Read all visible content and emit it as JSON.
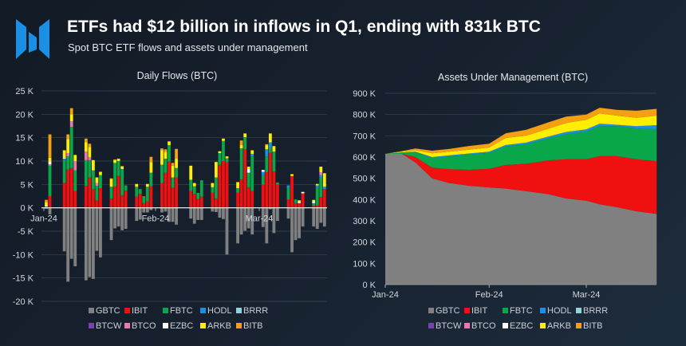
{
  "header": {
    "title": "ETFs had $12 billion in inflows in Q1, ending with 831k BTC",
    "subtitle": "Spot BTC ETF flows and assets under management",
    "logo_color": "#1a8fe3"
  },
  "colors": {
    "GBTC": "#808080",
    "IBIT": "#f0100f",
    "FBTC": "#0aa64a",
    "HODL": "#1a8fe3",
    "BRRR": "#8dd3e0",
    "BTCW": "#7a3fb0",
    "BTCO": "#e879b0",
    "EZBC": "#ffffff",
    "ARKB": "#ffee00",
    "BITB": "#f5a013"
  },
  "legend": [
    "GBTC",
    "IBIT",
    "FBTC",
    "HODL",
    "BRRR",
    "BTCW",
    "BTCO",
    "EZBC",
    "ARKB",
    "BITB"
  ],
  "chart_data": [
    {
      "type": "bar",
      "stacked": true,
      "title": "Daily Flows (BTC)",
      "ylim": [
        -20000,
        25000
      ],
      "yticks": [
        "25 K",
        "20 K",
        "15 K",
        "10 K",
        "5 K",
        "0 K",
        "-5 K",
        "-10 K",
        "-15 K",
        "-20 K"
      ],
      "ytick_values": [
        25000,
        20000,
        15000,
        10000,
        5000,
        0,
        -5000,
        -10000,
        -15000,
        -20000
      ],
      "xticks": [
        "Jan-24",
        "Feb-24",
        "Mar-24"
      ],
      "grid": true,
      "legend_position": "bottom",
      "x": [
        "2024-01-11",
        "2024-01-12",
        "2024-01-16",
        "2024-01-17",
        "2024-01-18",
        "2024-01-19",
        "2024-01-22",
        "2024-01-23",
        "2024-01-24",
        "2024-01-25",
        "2024-01-26",
        "2024-01-29",
        "2024-01-30",
        "2024-01-31",
        "2024-02-01",
        "2024-02-02",
        "2024-02-05",
        "2024-02-06",
        "2024-02-07",
        "2024-02-08",
        "2024-02-09",
        "2024-02-12",
        "2024-02-13",
        "2024-02-14",
        "2024-02-15",
        "2024-02-16",
        "2024-02-20",
        "2024-02-21",
        "2024-02-22",
        "2024-02-23",
        "2024-02-26",
        "2024-02-27",
        "2024-02-28",
        "2024-02-29",
        "2024-03-01",
        "2024-03-04",
        "2024-03-05",
        "2024-03-06",
        "2024-03-07",
        "2024-03-08",
        "2024-03-11",
        "2024-03-12",
        "2024-03-13",
        "2024-03-14",
        "2024-03-15",
        "2024-03-18",
        "2024-03-19",
        "2024-03-20",
        "2024-03-21",
        "2024-03-22",
        "2024-03-25",
        "2024-03-26",
        "2024-03-27",
        "2024-03-28"
      ],
      "series": [
        {
          "name": "GBTC",
          "values": [
            -200,
            -1400,
            -9300,
            -15800,
            -10900,
            -12500,
            -15500,
            -14800,
            -15200,
            -9200,
            -10600,
            -6900,
            -4400,
            -4000,
            -4800,
            -4500,
            -2800,
            -2500,
            -1000,
            -1000,
            -500,
            -1000,
            -800,
            -3000,
            -3000,
            -3600,
            -2300,
            -3400,
            -2600,
            -2600,
            -800,
            -900,
            -2100,
            -2400,
            -10000,
            -7600,
            -5700,
            -4900,
            -4400,
            -5700,
            -4100,
            -7600,
            -300,
            -5400,
            -2800,
            -2300,
            -9500,
            -6900,
            -6500,
            -4000,
            -4000,
            -4500,
            -3200,
            -4000
          ]
        },
        {
          "name": "IBIT",
          "values": [
            0,
            2500,
            5400,
            8200,
            8500,
            3600,
            4700,
            6500,
            4000,
            1600,
            4200,
            2000,
            4500,
            6800,
            2700,
            3700,
            2400,
            3000,
            1000,
            1400,
            4600,
            5300,
            7500,
            9900,
            4300,
            6500,
            3600,
            3000,
            1900,
            2400,
            3200,
            2000,
            9200,
            10000,
            9700,
            3200,
            6100,
            12500,
            4400,
            3600,
            5000,
            7600,
            11800,
            7800,
            5000,
            1800,
            6800,
            1000,
            1000,
            3100,
            400,
            500,
            2300,
            4000
          ]
        },
        {
          "name": "FBTC",
          "values": [
            300,
            6500,
            4800,
            2800,
            8800,
            4400,
            5500,
            3700,
            4000,
            3100,
            2800,
            2500,
            5100,
            3200,
            5600,
            1100,
            2100,
            1000,
            1300,
            3100,
            2900,
            3900,
            3000,
            3500,
            2200,
            2000,
            2400,
            1600,
            1300,
            3500,
            1200,
            4500,
            2500,
            4300,
            900,
            1000,
            6600,
            2600,
            3100,
            7400,
            2000,
            3400,
            1000,
            4200,
            400,
            2500,
            0,
            800,
            0,
            0,
            600,
            3900,
            4200,
            0
          ]
        },
        {
          "name": "HODL",
          "values": [
            0,
            0,
            300,
            0,
            0,
            0,
            0,
            0,
            0,
            0,
            0,
            0,
            0,
            0,
            0,
            0,
            0,
            0,
            0,
            0,
            0,
            0,
            0,
            0,
            0,
            0,
            0,
            0,
            0,
            0,
            0,
            0,
            0,
            0,
            0,
            0,
            0,
            0,
            0,
            500,
            700,
            1500,
            1200,
            0,
            0,
            500,
            0,
            0,
            0,
            0,
            0,
            400,
            500,
            500
          ]
        },
        {
          "name": "BRRR",
          "values": [
            0,
            0,
            0,
            0,
            0,
            0,
            0,
            0,
            0,
            0,
            0,
            0,
            0,
            0,
            0,
            0,
            0,
            0,
            0,
            0,
            0,
            0,
            0,
            0,
            0,
            0,
            0,
            0,
            0,
            0,
            0,
            0,
            0,
            0,
            0,
            0,
            0,
            0,
            0,
            0,
            0,
            0,
            0,
            0,
            0,
            0,
            0,
            0,
            0,
            0,
            0,
            0,
            0,
            0
          ]
        },
        {
          "name": "BTCW",
          "values": [
            0,
            0,
            0,
            0,
            0,
            0,
            0,
            0,
            0,
            0,
            0,
            0,
            0,
            0,
            0,
            0,
            0,
            0,
            0,
            0,
            0,
            0,
            0,
            0,
            0,
            0,
            0,
            0,
            0,
            0,
            0,
            0,
            0,
            0,
            0,
            0,
            0,
            0,
            0,
            0,
            0,
            0,
            0,
            0,
            0,
            0,
            0,
            0,
            0,
            0,
            0,
            0,
            0,
            0
          ]
        },
        {
          "name": "BTCO",
          "values": [
            0,
            300,
            0,
            700,
            1200,
            2000,
            1800,
            600,
            0,
            600,
            0,
            0,
            0,
            0,
            0,
            0,
            0,
            0,
            0,
            0,
            0,
            0,
            0,
            0,
            0,
            0,
            0,
            0,
            0,
            0,
            0,
            0,
            0,
            0,
            0,
            0,
            0,
            0,
            0,
            0,
            0,
            0,
            0,
            0,
            0,
            0,
            0,
            0,
            0,
            0,
            0,
            0,
            600,
            0
          ]
        },
        {
          "name": "EZBC",
          "values": [
            300,
            600,
            300,
            0,
            0,
            0,
            0,
            0,
            0,
            0,
            0,
            0,
            0,
            0,
            0,
            0,
            0,
            0,
            0,
            0,
            0,
            0,
            0,
            0,
            0,
            0,
            0,
            0,
            0,
            0,
            0,
            0,
            0,
            0,
            0,
            0,
            0,
            0,
            800,
            0,
            400,
            0,
            0,
            0,
            0,
            0,
            0,
            0,
            300,
            300,
            400,
            0,
            0,
            0
          ]
        },
        {
          "name": "ARKB",
          "values": [
            600,
            800,
            1500,
            3000,
            1500,
            1300,
            2000,
            2200,
            2200,
            1200,
            700,
            1700,
            700,
            500,
            600,
            0,
            600,
            0,
            100,
            600,
            2300,
            3100,
            1500,
            800,
            2500,
            2000,
            3000,
            700,
            0,
            0,
            900,
            3300,
            400,
            500,
            400,
            1300,
            700,
            800,
            500,
            800,
            0,
            900,
            1900,
            1200,
            0,
            0,
            400,
            0,
            300,
            0,
            300,
            300,
            1200,
            2900
          ]
        },
        {
          "name": "BITB",
          "values": [
            500,
            5000,
            0,
            1000,
            1300,
            0,
            800,
            700,
            0,
            0,
            0,
            100,
            0,
            0,
            0,
            0,
            0,
            0,
            0,
            0,
            1100,
            400,
            500,
            0,
            600,
            2100,
            0,
            0,
            0,
            0,
            0,
            0,
            0,
            0,
            0,
            0,
            1000,
            0,
            0,
            0,
            0,
            200,
            0,
            0,
            0,
            0,
            0,
            0,
            0,
            0,
            0,
            0,
            0,
            0
          ]
        }
      ]
    },
    {
      "type": "area",
      "stacked": true,
      "title": "Assets Under Management (BTC)",
      "ylim": [
        0,
        900000
      ],
      "yticks": [
        "900 K",
        "800 K",
        "700 K",
        "600 K",
        "500 K",
        "400 K",
        "300 K",
        "200 K",
        "100 K",
        "0 K"
      ],
      "ytick_values": [
        900000,
        800000,
        700000,
        600000,
        500000,
        400000,
        300000,
        200000,
        100000,
        0
      ],
      "xticks": [
        "Jan-24",
        "Feb-24",
        "Mar-24"
      ],
      "xtick_values": [
        "2024-01-01",
        "2024-02-01",
        "2024-03-01"
      ],
      "grid": true,
      "legend_position": "bottom",
      "x": [
        "2024-01-01",
        "2024-01-06",
        "2024-01-10",
        "2024-01-15",
        "2024-01-20",
        "2024-01-26",
        "2024-02-01",
        "2024-02-06",
        "2024-02-12",
        "2024-02-19",
        "2024-02-24",
        "2024-03-01",
        "2024-03-05",
        "2024-03-10",
        "2024-03-16",
        "2024-03-22"
      ],
      "series": [
        {
          "name": "GBTC",
          "values": [
            615000,
            615000,
            575000,
            500000,
            478000,
            465000,
            457000,
            452000,
            440000,
            425000,
            405000,
            395000,
            378000,
            365000,
            345000,
            333000
          ]
        },
        {
          "name": "IBIT",
          "values": [
            0,
            0,
            25000,
            50000,
            65000,
            75000,
            88000,
            111000,
            128000,
            160000,
            185000,
            195000,
            227000,
            240000,
            245000,
            247000
          ]
        },
        {
          "name": "FBTC",
          "values": [
            0,
            7000,
            25000,
            45000,
            60000,
            72000,
            75000,
            87000,
            92000,
            105000,
            118000,
            130000,
            140000,
            140000,
            145000,
            150000
          ]
        },
        {
          "name": "HODL",
          "values": [
            0,
            0,
            0,
            5000,
            5000,
            5000,
            5000,
            7000,
            8000,
            8000,
            10000,
            10000,
            12000,
            7000,
            10000,
            20000
          ]
        },
        {
          "name": "BRRR",
          "values": [
            0,
            0,
            0,
            0,
            0,
            0,
            0,
            0,
            0,
            0,
            0,
            0,
            0,
            0,
            0,
            0
          ]
        },
        {
          "name": "BTCW",
          "values": [
            0,
            0,
            0,
            0,
            0,
            0,
            0,
            0,
            0,
            0,
            0,
            0,
            0,
            0,
            0,
            0
          ]
        },
        {
          "name": "BTCO",
          "values": [
            0,
            0,
            0,
            0,
            0,
            0,
            0,
            0,
            0,
            0,
            0,
            0,
            0,
            0,
            0,
            0
          ]
        },
        {
          "name": "EZBC",
          "values": [
            0,
            0,
            0,
            0,
            0,
            0,
            0,
            0,
            0,
            0,
            0,
            0,
            0,
            0,
            0,
            0
          ]
        },
        {
          "name": "ARKB",
          "values": [
            0,
            3000,
            7000,
            18000,
            17000,
            18000,
            20000,
            33000,
            32000,
            37000,
            42000,
            45000,
            48000,
            43000,
            40000,
            45000
          ]
        },
        {
          "name": "BITB",
          "values": [
            0,
            3000,
            8000,
            12000,
            13000,
            17000,
            18000,
            22000,
            28000,
            30000,
            30000,
            25000,
            27000,
            27000,
            33000,
            32000
          ]
        }
      ]
    }
  ]
}
